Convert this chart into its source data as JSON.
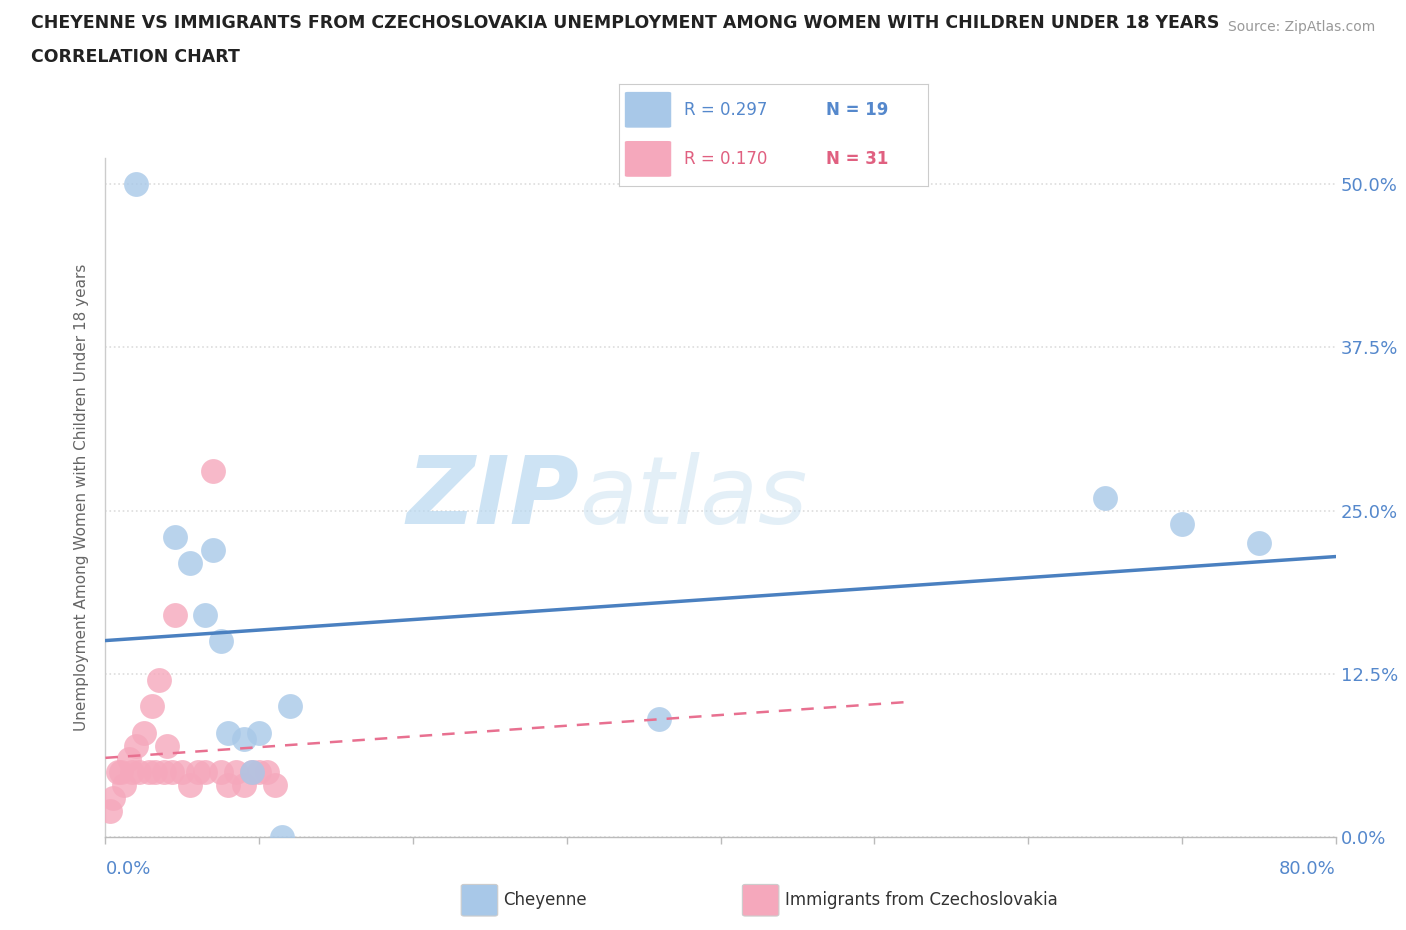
{
  "title_line1": "CHEYENNE VS IMMIGRANTS FROM CZECHOSLOVAKIA UNEMPLOYMENT AMONG WOMEN WITH CHILDREN UNDER 18 YEARS",
  "title_line2": "CORRELATION CHART",
  "source": "Source: ZipAtlas.com",
  "ylabel": "Unemployment Among Women with Children Under 18 years",
  "xlim": [
    0.0,
    80.0
  ],
  "ylim": [
    0.0,
    52.0
  ],
  "ytick_values": [
    0.0,
    12.5,
    25.0,
    37.5,
    50.0
  ],
  "ytick_labels": [
    "0.0%",
    "12.5%",
    "25.0%",
    "37.5%",
    "50.0%"
  ],
  "cheyenne_color": "#a8c8e8",
  "immigrants_color": "#f5a8bc",
  "cheyenne_line_color": "#4a80c0",
  "immigrants_line_color": "#e87090",
  "cheyenne_x": [
    2.0,
    4.5,
    5.5,
    6.5,
    7.0,
    7.5,
    8.0,
    9.0,
    9.5,
    10.0,
    11.5,
    12.0,
    36.0,
    65.0,
    70.0,
    75.0
  ],
  "cheyenne_y": [
    50.0,
    23.0,
    21.0,
    17.0,
    22.0,
    15.0,
    8.0,
    7.5,
    5.0,
    8.0,
    0.0,
    10.0,
    9.0,
    26.0,
    24.0,
    22.5
  ],
  "immigrants_x": [
    0.3,
    0.5,
    0.8,
    1.0,
    1.2,
    1.5,
    1.7,
    2.0,
    2.2,
    2.5,
    2.8,
    3.0,
    3.2,
    3.5,
    3.8,
    4.0,
    4.3,
    4.5,
    5.0,
    5.5,
    6.0,
    6.5,
    7.0,
    7.5,
    8.0,
    8.5,
    9.0,
    9.5,
    10.0,
    10.5,
    11.0
  ],
  "immigrants_y": [
    2.0,
    3.0,
    5.0,
    5.0,
    4.0,
    6.0,
    5.0,
    7.0,
    5.0,
    8.0,
    5.0,
    10.0,
    5.0,
    12.0,
    5.0,
    7.0,
    5.0,
    17.0,
    5.0,
    4.0,
    5.0,
    5.0,
    28.0,
    5.0,
    4.0,
    5.0,
    4.0,
    5.0,
    5.0,
    5.0,
    4.0
  ],
  "watermark_zip": "ZIP",
  "watermark_atlas": "atlas",
  "background_color": "#ffffff",
  "grid_color": "#dddddd",
  "title_color": "#222222",
  "source_color": "#999999",
  "axis_color": "#888888",
  "label_color": "#666666",
  "tick_label_color": "#5588cc"
}
